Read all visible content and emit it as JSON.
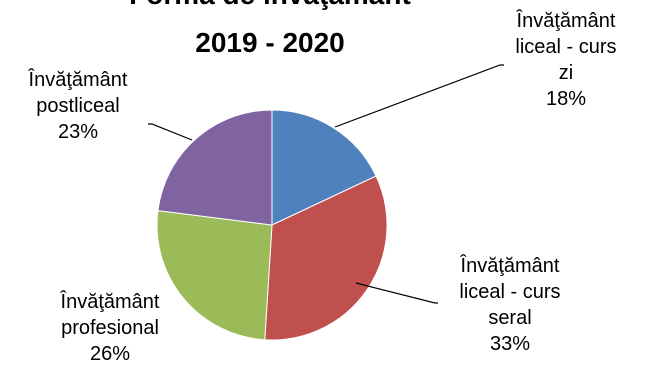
{
  "chart_data": {
    "type": "pie",
    "title_line1": "Forma de învăţământ",
    "title_line2": "2019 - 2020",
    "slices": [
      {
        "name": "Învăţământ liceal - curs zi",
        "label_lines": [
          "Învăţământ",
          "liceal - curs",
          "zi"
        ],
        "percent_label": "18%",
        "value": 18,
        "color": "#4f81bd"
      },
      {
        "name": "Învăţământ liceal - curs seral",
        "label_lines": [
          "Învăţământ",
          "liceal - curs",
          "seral"
        ],
        "percent_label": "33%",
        "value": 33,
        "color": "#c0504d"
      },
      {
        "name": "Învăţământ profesional",
        "label_lines": [
          "Învăţământ",
          "profesional"
        ],
        "percent_label": "26%",
        "value": 26,
        "color": "#9bbb59"
      },
      {
        "name": "Învăţământ postliceal",
        "label_lines": [
          "Învăţământ",
          "postliceal"
        ],
        "percent_label": "23%",
        "value": 23,
        "color": "#8064a2"
      }
    ]
  }
}
